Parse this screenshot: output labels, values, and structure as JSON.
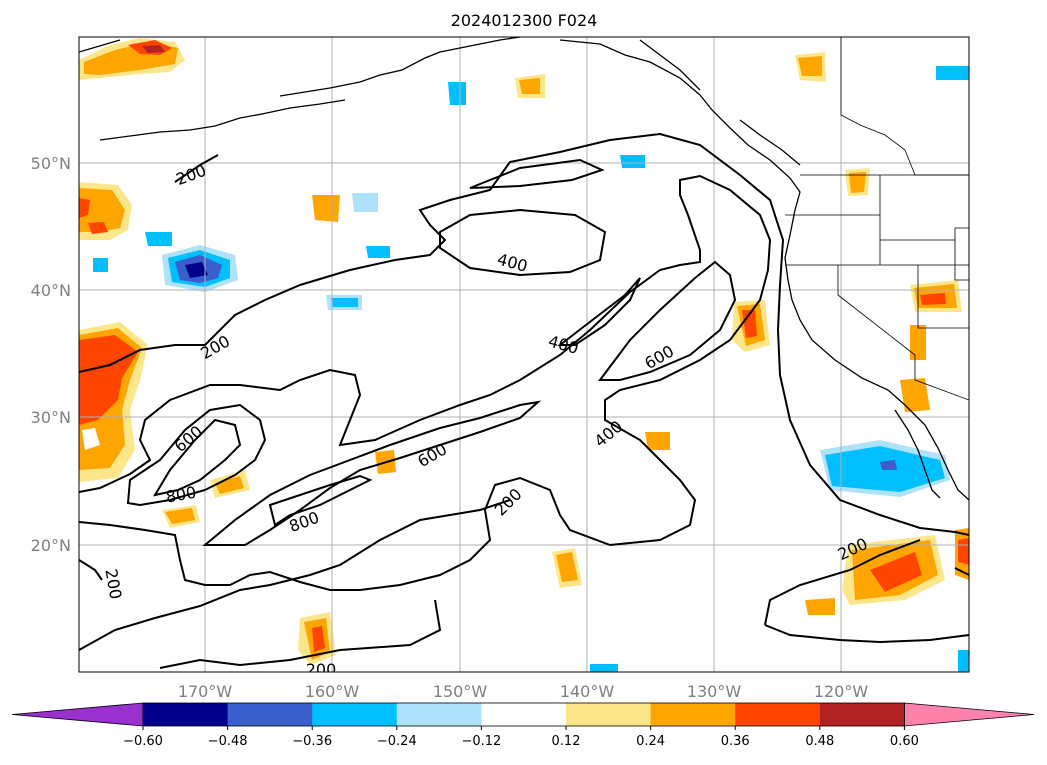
{
  "title": "2024012300 F024",
  "lat_labels": [
    "50°N",
    "40°N",
    "30°N",
    "20°N"
  ],
  "lon_labels": [
    "170°W",
    "160°W",
    "150°W",
    "140°W",
    "130°W",
    "120°W"
  ],
  "contour_labels": [
    "200",
    "400",
    "200",
    "400",
    "600",
    "600",
    "400",
    "600",
    "800",
    "800",
    "200",
    "200",
    "200",
    "200"
  ],
  "colorbar": {
    "ticks": [
      "−0.60",
      "−0.48",
      "−0.36",
      "−0.24",
      "−0.12",
      "0.12",
      "0.24",
      "0.36",
      "0.48",
      "0.60"
    ],
    "colors": [
      "#9b30d0",
      "#00008b",
      "#3a5fcd",
      "#00bfff",
      "#aee2fa",
      "#ffffff",
      "#fde68a",
      "#ffa500",
      "#ff4500",
      "#b22222",
      "#ff82ab"
    ]
  }
}
